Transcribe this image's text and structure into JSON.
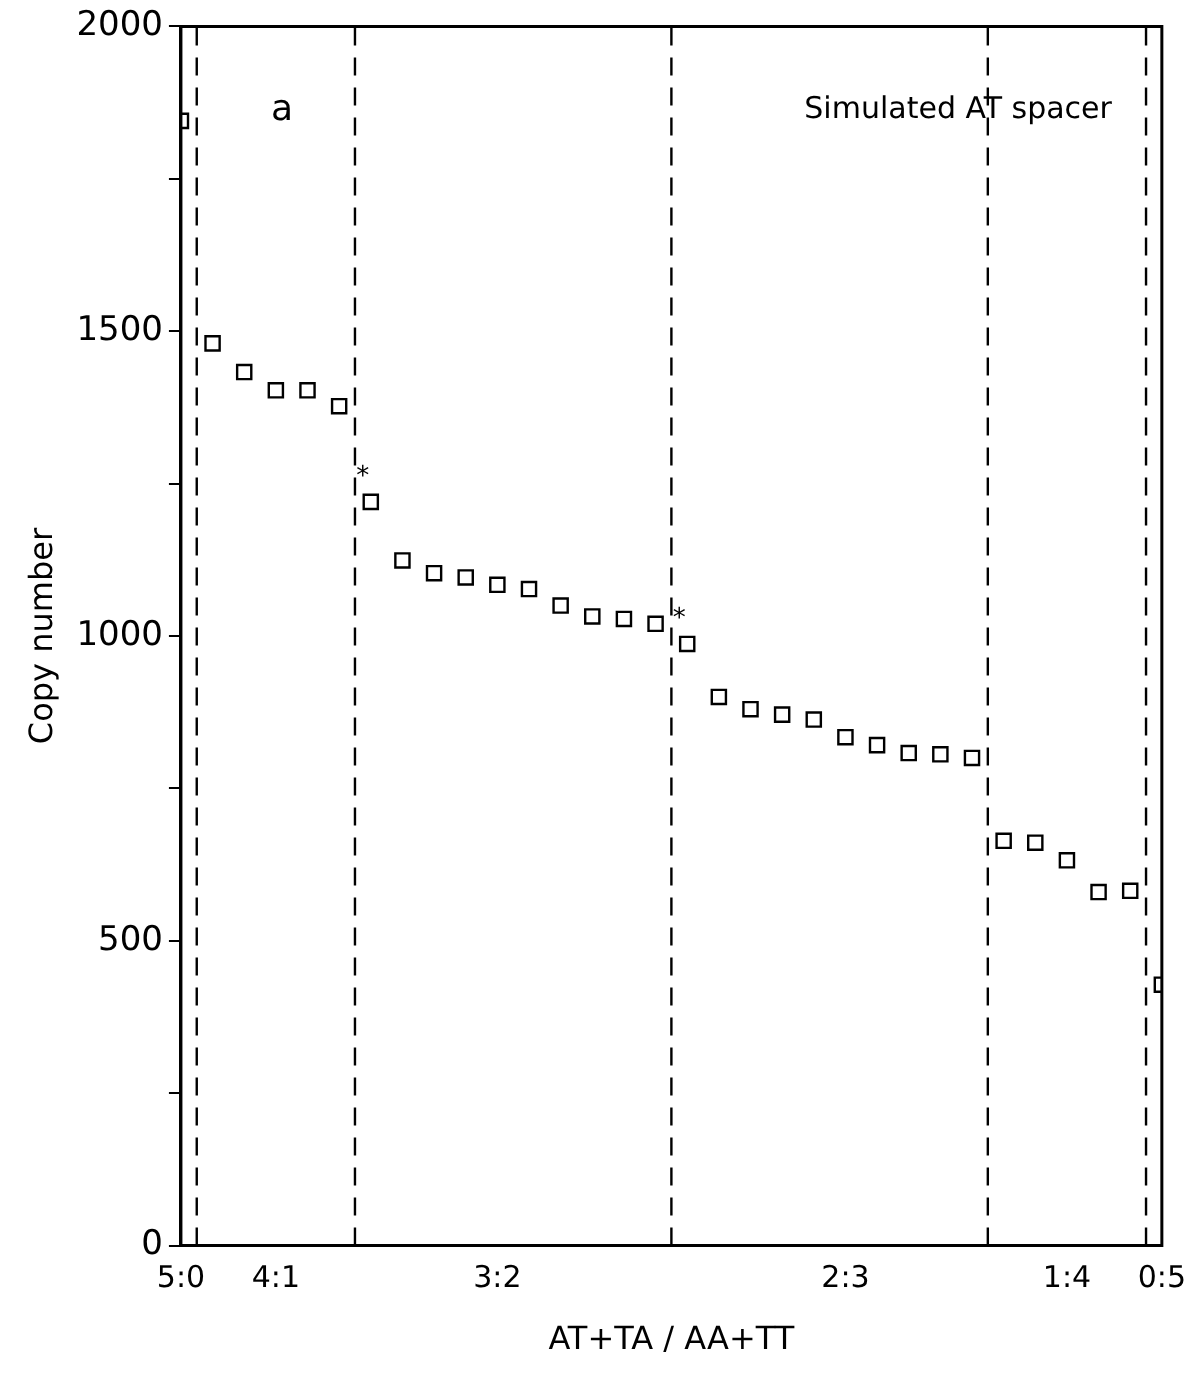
{
  "chart_data": {
    "type": "scatter",
    "title": "Simulated AT spacer",
    "xlabel": "AT+TA / AA+TT",
    "ylabel": "Copy number",
    "categories": [
      "5:0",
      null,
      null,
      "4:1",
      null,
      null,
      null,
      null,
      null,
      null,
      "3:2",
      null,
      null,
      null,
      null,
      null,
      null,
      null,
      null,
      null,
      null,
      "2:3",
      null,
      null,
      null,
      null,
      null,
      null,
      "1:4",
      null,
      null,
      "0:5"
    ],
    "series": [
      {
        "color": "#000000",
        "values": [
          1845,
          1480,
          1433,
          1403,
          1403,
          1377,
          1220,
          1124,
          1103,
          1096,
          1084,
          1077,
          1050,
          1032,
          1028,
          1020,
          987,
          900,
          880,
          871,
          863,
          834,
          821,
          808,
          806,
          800,
          664,
          661,
          632,
          580,
          582,
          428
        ],
        "value_labels": [
          null,
          null,
          null,
          null,
          null,
          null,
          "*",
          null,
          null,
          null,
          null,
          null,
          null,
          null,
          null,
          null,
          "*",
          null,
          null,
          null,
          null,
          null,
          null,
          null,
          null,
          null,
          null,
          null,
          null,
          null,
          null,
          null
        ]
      }
    ],
    "ylim": [
      0,
      2000
    ],
    "yticks": [
      0,
      {
        "value": 250,
        "label": null
      },
      500,
      {
        "value": 750,
        "label": null
      },
      1000,
      {
        "value": 1250,
        "label": null
      },
      1500,
      {
        "value": 1750,
        "label": null
      },
      2000
    ],
    "annotations": [
      "a"
    ],
    "marker": "square",
    "grid": false,
    "legend": false
  }
}
